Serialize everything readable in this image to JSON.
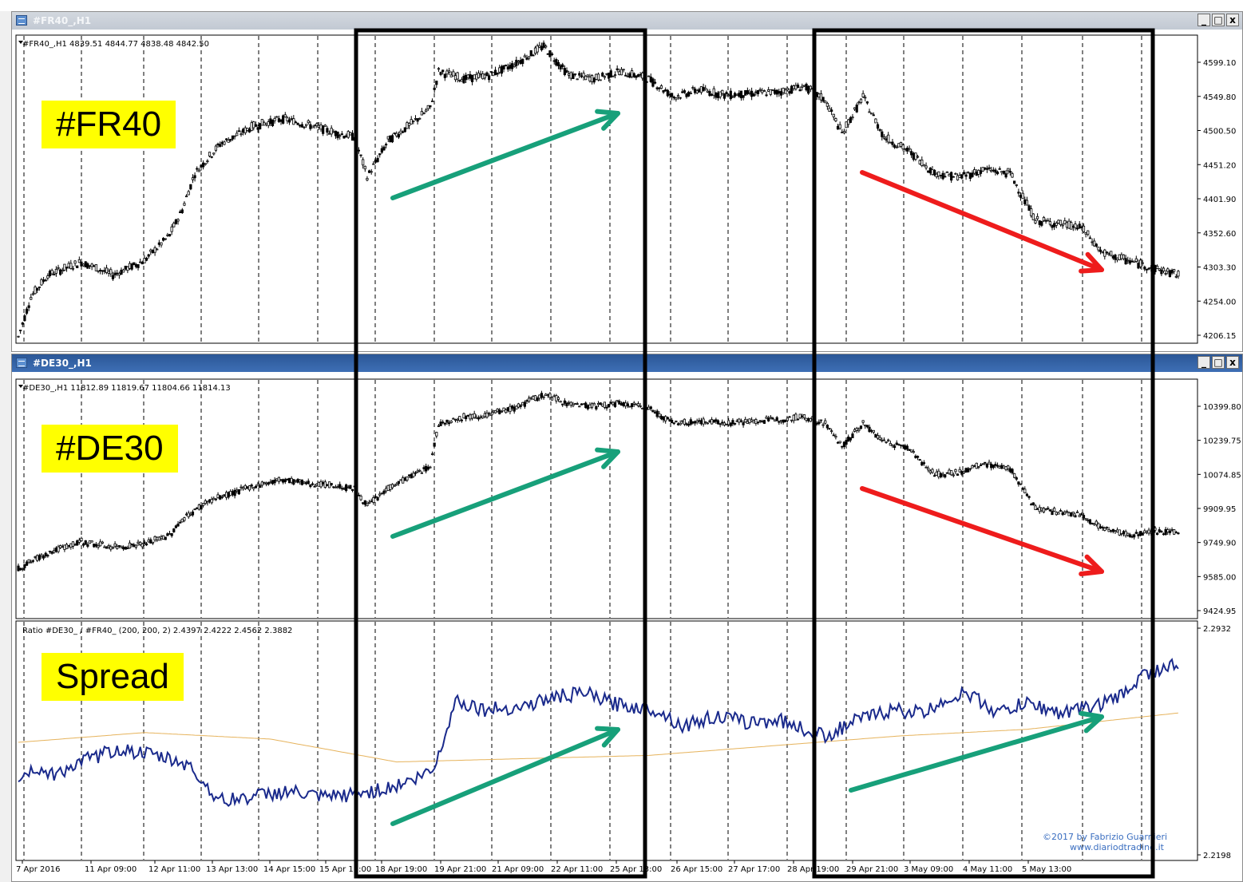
{
  "windows": [
    {
      "title": "#FR40_,H1",
      "active": false
    },
    {
      "title": "#DE30_,H1",
      "active": true
    }
  ],
  "window_buttons": [
    "_",
    "□",
    "x"
  ],
  "overlay_labels": [
    "#FR40",
    "#DE30",
    "Spread"
  ],
  "watermark": [
    "©2017 by Fabrizio Guarnieri",
    "www.diariodtrading.it"
  ],
  "colors": {
    "candle": "#000000",
    "spread_line": "#1a2a8c",
    "ma_line": "#e6b35c",
    "up_arrow": "#17a07a",
    "down_arrow": "#ee1c1c",
    "highlight_box": "#000000"
  },
  "chart_data": [
    {
      "type": "candlestick",
      "header": "#FR40_,H1  4839.51 4844.77 4838.48 4842.50",
      "y_ticks": [
        "4599.10",
        "4549.80",
        "4500.50",
        "4451.20",
        "4401.90",
        "4352.60",
        "4303.30",
        "4254.00",
        "4206.15"
      ],
      "ylim": [
        4206.15,
        4630
      ],
      "series": [
        {
          "anchors": [
            [
              0,
              4215
            ],
            [
              6,
              4270
            ],
            [
              14,
              4300
            ],
            [
              30,
              4318
            ],
            [
              45,
              4300
            ],
            [
              60,
              4320
            ],
            [
              72,
              4355
            ],
            [
              78,
              4390
            ],
            [
              84,
              4440
            ],
            [
              96,
              4480
            ],
            [
              112,
              4505
            ],
            [
              126,
              4515
            ],
            [
              140,
              4505
            ],
            [
              152,
              4495
            ],
            [
              160,
              4490
            ],
            [
              166,
              4435
            ],
            [
              176,
              4485
            ],
            [
              188,
              4510
            ],
            [
              196,
              4530
            ],
            [
              200,
              4580
            ],
            [
              212,
              4570
            ],
            [
              224,
              4575
            ],
            [
              236,
              4590
            ],
            [
              250,
              4615
            ],
            [
              262,
              4575
            ],
            [
              274,
              4570
            ],
            [
              286,
              4580
            ],
            [
              300,
              4570
            ],
            [
              312,
              4545
            ],
            [
              324,
              4555
            ],
            [
              336,
              4548
            ],
            [
              350,
              4550
            ],
            [
              362,
              4552
            ],
            [
              374,
              4560
            ],
            [
              384,
              4540
            ],
            [
              392,
              4495
            ],
            [
              402,
              4545
            ],
            [
              412,
              4490
            ],
            [
              424,
              4470
            ],
            [
              436,
              4440
            ],
            [
              448,
              4435
            ],
            [
              460,
              4445
            ],
            [
              472,
              4440
            ],
            [
              484,
              4375
            ],
            [
              496,
              4370
            ],
            [
              506,
              4365
            ],
            [
              516,
              4330
            ],
            [
              528,
              4320
            ],
            [
              540,
              4310
            ],
            [
              552,
              4300
            ]
          ]
        }
      ]
    },
    {
      "type": "candlestick",
      "header": "#DE30_,H1  11812.89 11819.67 11804.66 11814.13",
      "y_ticks": [
        "10399.80",
        "10239.75",
        "10074.85",
        "9909.95",
        "9749.90",
        "9585.00",
        "9424.95"
      ],
      "ylim": [
        9424.95,
        10500
      ],
      "series": [
        {
          "anchors": [
            [
              0,
              9650
            ],
            [
              14,
              9720
            ],
            [
              30,
              9770
            ],
            [
              45,
              9745
            ],
            [
              60,
              9760
            ],
            [
              72,
              9800
            ],
            [
              78,
              9870
            ],
            [
              90,
              9950
            ],
            [
              112,
              10020
            ],
            [
              126,
              10050
            ],
            [
              140,
              10030
            ],
            [
              152,
              10020
            ],
            [
              160,
              10010
            ],
            [
              166,
              9930
            ],
            [
              176,
              10010
            ],
            [
              188,
              10070
            ],
            [
              196,
              10110
            ],
            [
              200,
              10300
            ],
            [
              212,
              10330
            ],
            [
              224,
              10340
            ],
            [
              236,
              10370
            ],
            [
              250,
              10430
            ],
            [
              262,
              10390
            ],
            [
              274,
              10380
            ],
            [
              286,
              10390
            ],
            [
              300,
              10370
            ],
            [
              312,
              10300
            ],
            [
              324,
              10310
            ],
            [
              336,
              10305
            ],
            [
              350,
              10310
            ],
            [
              362,
              10320
            ],
            [
              374,
              10330
            ],
            [
              384,
              10300
            ],
            [
              392,
              10200
            ],
            [
              402,
              10300
            ],
            [
              412,
              10220
            ],
            [
              424,
              10190
            ],
            [
              436,
              10070
            ],
            [
              448,
              10080
            ],
            [
              460,
              10120
            ],
            [
              472,
              10100
            ],
            [
              484,
              9920
            ],
            [
              496,
              9900
            ],
            [
              506,
              9890
            ],
            [
              516,
              9830
            ],
            [
              528,
              9800
            ],
            [
              540,
              9820
            ],
            [
              552,
              9810
            ]
          ]
        }
      ]
    },
    {
      "type": "line",
      "header": "Ratio #DE30_ / #FR40_ (200, 200, 2) 2.4397 2.4222 2.4562 2.3882",
      "y_ticks": [
        "2.2932",
        "2.2198"
      ],
      "ylim": [
        2.2198,
        2.2932
      ],
      "x_tick_labels": [
        "7 Apr 2016",
        "11 Apr 09:00",
        "12 Apr 11:00",
        "13 Apr 13:00",
        "14 Apr 15:00",
        "15 Apr 17:00",
        "18 Apr 19:00",
        "19 Apr 21:00",
        "21 Apr 09:00",
        "22 Apr 11:00",
        "25 Apr 13:00",
        "26 Apr 15:00",
        "27 Apr 17:00",
        "28 Apr 19:00",
        "29 Apr 21:00",
        "3 May 09:00",
        "4 May 11:00",
        "5 May 13:00"
      ],
      "series": [
        {
          "anchors": [
            [
              0,
              2.245
            ],
            [
              8,
              2.248
            ],
            [
              16,
              2.246
            ],
            [
              32,
              2.2505
            ],
            [
              48,
              2.254
            ],
            [
              64,
              2.252
            ],
            [
              80,
              2.2495
            ],
            [
              96,
              2.238
            ],
            [
              112,
              2.2395
            ],
            [
              128,
              2.241
            ],
            [
              144,
              2.239
            ],
            [
              160,
              2.24
            ],
            [
              176,
              2.242
            ],
            [
              190,
              2.245
            ],
            [
              198,
              2.248
            ],
            [
              208,
              2.269
            ],
            [
              222,
              2.266
            ],
            [
              240,
              2.267
            ],
            [
              256,
              2.27
            ],
            [
              270,
              2.271
            ],
            [
              282,
              2.268
            ],
            [
              292,
              2.267
            ],
            [
              304,
              2.266
            ],
            [
              316,
              2.261
            ],
            [
              332,
              2.264
            ],
            [
              348,
              2.262
            ],
            [
              362,
              2.263
            ],
            [
              374,
              2.26
            ],
            [
              384,
              2.258
            ],
            [
              400,
              2.263
            ],
            [
              416,
              2.266
            ],
            [
              432,
              2.265
            ],
            [
              440,
              2.269
            ],
            [
              452,
              2.271
            ],
            [
              466,
              2.265
            ],
            [
              480,
              2.268
            ],
            [
              496,
              2.265
            ],
            [
              512,
              2.267
            ],
            [
              524,
              2.27
            ],
            [
              536,
              2.277
            ],
            [
              552,
              2.28
            ]
          ]
        },
        {
          "anchors": [
            [
              0,
              2.256
            ],
            [
              60,
              2.259
            ],
            [
              120,
              2.257
            ],
            [
              180,
              2.25
            ],
            [
              240,
              2.251
            ],
            [
              300,
              2.252
            ],
            [
              360,
              2.255
            ],
            [
              420,
              2.258
            ],
            [
              480,
              2.26
            ],
            [
              552,
              2.265
            ]
          ]
        }
      ]
    }
  ]
}
